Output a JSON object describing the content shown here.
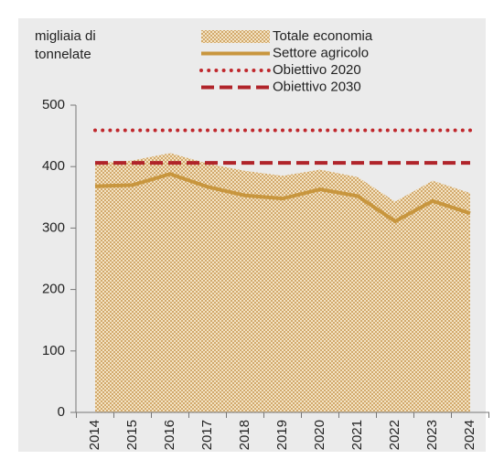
{
  "chart_data": {
    "type": "line",
    "ylabel": [
      "migliaia di",
      "tonnelate"
    ],
    "categories": [
      "2014",
      "2015",
      "2016",
      "2017",
      "2018",
      "2019",
      "2020",
      "2021",
      "2022",
      "2023",
      "2024"
    ],
    "series": [
      {
        "name": "Totale economia",
        "style": "area",
        "color": "#d4b078",
        "values": [
          405,
          410,
          422,
          405,
          393,
          385,
          395,
          383,
          343,
          377,
          357
        ]
      },
      {
        "name": "Settore agricolo",
        "style": "solid",
        "color": "#c8963e",
        "values": [
          368,
          370,
          388,
          367,
          353,
          348,
          363,
          352,
          311,
          344,
          324
        ]
      },
      {
        "name": "Obiettivo 2020",
        "style": "dotted",
        "color": "#c0282d",
        "values": [
          459,
          459,
          459,
          459,
          459,
          459,
          459,
          459,
          459,
          459,
          459
        ]
      },
      {
        "name": "Obiettivo 2030",
        "style": "dashed",
        "color": "#b0242a",
        "values": [
          406,
          406,
          406,
          406,
          406,
          406,
          406,
          406,
          406,
          406,
          406
        ]
      }
    ],
    "ylim": [
      0,
      500
    ],
    "yticks": [
      0,
      100,
      200,
      300,
      400,
      500
    ]
  }
}
